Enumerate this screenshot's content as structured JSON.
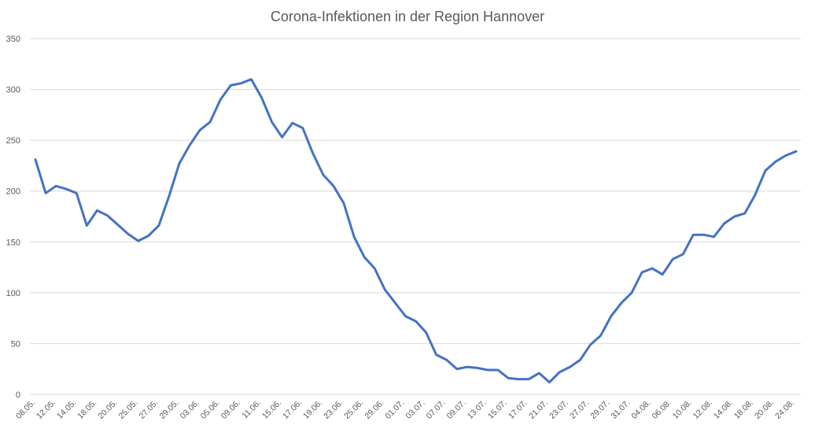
{
  "chart_data": {
    "type": "line",
    "title": "Corona-Infektionen in der Region Hannover",
    "xlabel": "",
    "ylabel": "",
    "ylim": [
      0,
      350
    ],
    "yticks": [
      0,
      50,
      100,
      150,
      200,
      250,
      300,
      350
    ],
    "grid": true,
    "legend": "none",
    "line_color": "#4472c4",
    "x_tick_labels": [
      "08.05.",
      "12.05.",
      "14.05.",
      "18.05.",
      "20.05.",
      "25.05.",
      "27.05.",
      "29.05.",
      "03.06.",
      "05.06.",
      "09.06.",
      "11.06.",
      "15.06.",
      "17.06.",
      "19.06.",
      "23.06.",
      "25.06.",
      "29.06.",
      "01.07.",
      "03.07.",
      "07.07.",
      "09.07.",
      "13.07.",
      "15.07.",
      "17.07.",
      "21.07.",
      "23.07.",
      "27.07.",
      "29.07.",
      "31.07.",
      "04.08.",
      "06.08.",
      "10.08.",
      "12.08.",
      "14.08.",
      "18.08.",
      "20.08.",
      "24.08."
    ],
    "series": [
      {
        "values": [
          231,
          198,
          205,
          202,
          198,
          166,
          181,
          176,
          167,
          158,
          151,
          156,
          166,
          195,
          227,
          245,
          260,
          268,
          290,
          304,
          306,
          310,
          292,
          268,
          253,
          267,
          262,
          237,
          216,
          205,
          188,
          155,
          135,
          124,
          103,
          90,
          77,
          72,
          61,
          39,
          34,
          25,
          27,
          26,
          24,
          24,
          16,
          15,
          15,
          21,
          12,
          22,
          27,
          34,
          49,
          58,
          77,
          90,
          100,
          120,
          124,
          118,
          133,
          138,
          157,
          157,
          155,
          168,
          175,
          178,
          196,
          220,
          229,
          235,
          239
        ]
      }
    ]
  }
}
